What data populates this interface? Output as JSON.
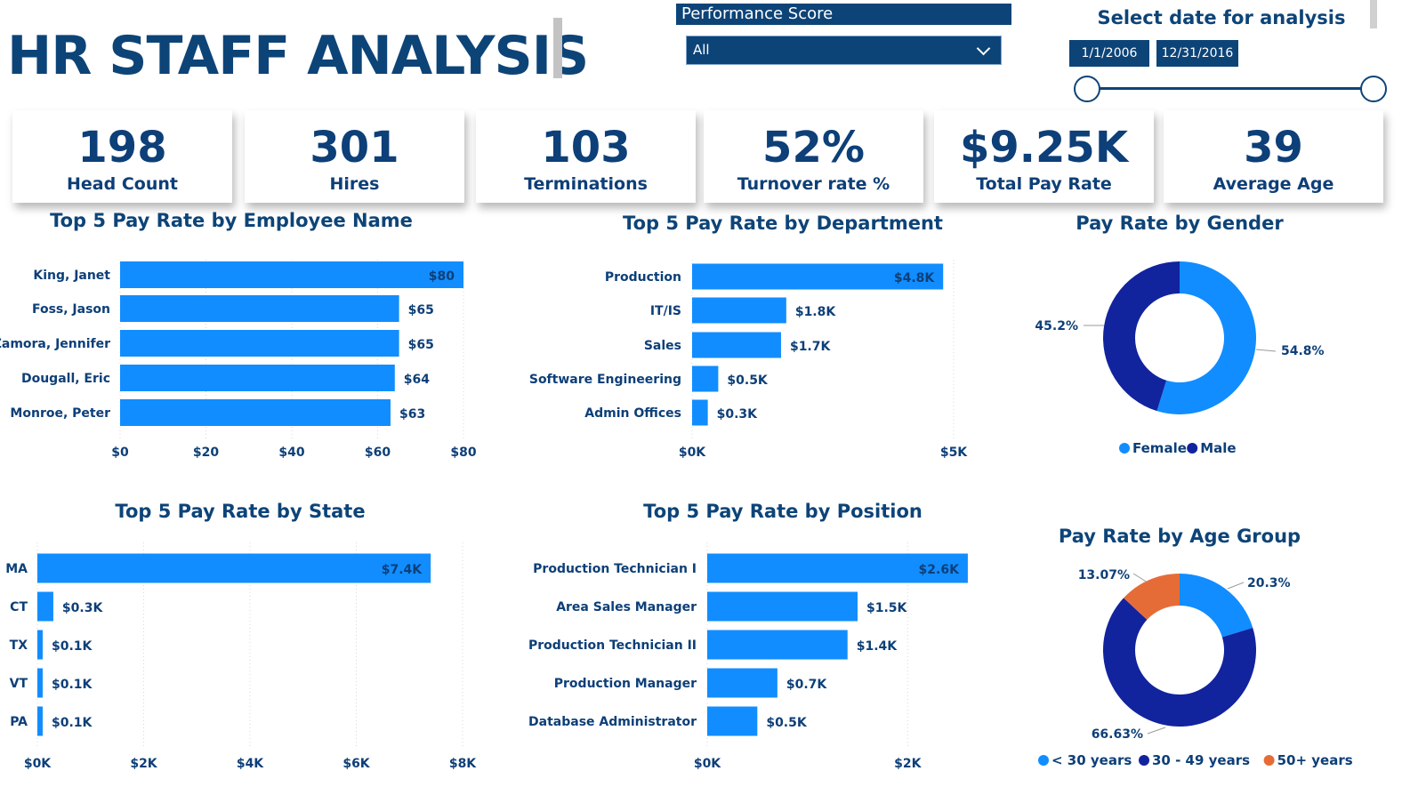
{
  "header": {
    "title": "HR STAFF ANALYSIS",
    "filter_label": "Performance Score",
    "filter_value": "All",
    "date_title": "Select date for analysis",
    "date_start": "1/1/2006",
    "date_end": "12/31/2016"
  },
  "kpis": [
    {
      "value": "198",
      "label": "Head Count"
    },
    {
      "value": "301",
      "label": "Hires"
    },
    {
      "value": "103",
      "label": "Terminations"
    },
    {
      "value": "52%",
      "label": "Turnover rate %"
    },
    {
      "value": "$9.25K",
      "label": "Total Pay Rate"
    },
    {
      "value": "39",
      "label": "Average Age"
    }
  ],
  "colors": {
    "bar": "#118dff",
    "dark": "#12239e",
    "orange": "#e66c37",
    "text": "#0d3f78"
  },
  "chart_data": [
    {
      "id": "employee",
      "type": "bar",
      "orientation": "horizontal",
      "title": "Top 5 Pay Rate by Employee Name",
      "categories": [
        "King, Janet",
        "Foss, Jason",
        "Zamora, Jennifer",
        "Dougall, Eric",
        "Monroe, Peter"
      ],
      "values": [
        80,
        65,
        65,
        64,
        63
      ],
      "value_labels": [
        "$80",
        "$65",
        "$65",
        "$64",
        "$63"
      ],
      "xlim": [
        0,
        80
      ],
      "xticks": [
        0,
        20,
        40,
        60,
        80
      ],
      "xtick_labels": [
        "$0",
        "$20",
        "$40",
        "$60",
        "$80"
      ]
    },
    {
      "id": "department",
      "type": "bar",
      "orientation": "horizontal",
      "title": "Top 5 Pay Rate by Department",
      "categories": [
        "Production",
        "IT/IS",
        "Sales",
        "Software Engineering",
        "Admin Offices"
      ],
      "values": [
        4.8,
        1.8,
        1.7,
        0.5,
        0.3
      ],
      "value_labels": [
        "$4.8K",
        "$1.8K",
        "$1.7K",
        "$0.5K",
        "$0.3K"
      ],
      "xlim": [
        0,
        5
      ],
      "xticks": [
        0,
        5
      ],
      "xtick_labels": [
        "$0K",
        "$5K"
      ]
    },
    {
      "id": "state",
      "type": "bar",
      "orientation": "horizontal",
      "title": "Top 5 Pay Rate by State",
      "categories": [
        "MA",
        "CT",
        "TX",
        "VT",
        "PA"
      ],
      "values": [
        7.4,
        0.3,
        0.1,
        0.1,
        0.1
      ],
      "value_labels": [
        "$7.4K",
        "$0.3K",
        "$0.1K",
        "$0.1K",
        "$0.1K"
      ],
      "xlim": [
        0,
        8
      ],
      "xticks": [
        0,
        2,
        4,
        6,
        8
      ],
      "xtick_labels": [
        "$0K",
        "$2K",
        "$4K",
        "$6K",
        "$8K"
      ]
    },
    {
      "id": "position",
      "type": "bar",
      "orientation": "horizontal",
      "title": "Top 5 Pay Rate by Position",
      "categories": [
        "Production Technician I",
        "Area Sales Manager",
        "Production Technician II",
        "Production Manager",
        "Database Administrator"
      ],
      "values": [
        2.6,
        1.5,
        1.4,
        0.7,
        0.5
      ],
      "value_labels": [
        "$2.6K",
        "$1.5K",
        "$1.4K",
        "$0.7K",
        "$0.5K"
      ],
      "xlim": [
        0,
        3
      ],
      "xticks": [
        0,
        2
      ],
      "xtick_labels": [
        "$0K",
        "$2K"
      ]
    },
    {
      "id": "gender",
      "type": "pie",
      "donut": true,
      "title": "Pay Rate by Gender",
      "labels": [
        "Female",
        "Male"
      ],
      "values": [
        54.8,
        45.2
      ],
      "value_labels": [
        "54.8%",
        "45.2%"
      ],
      "colors": [
        "#118dff",
        "#12239e"
      ],
      "legend": "bottom"
    },
    {
      "id": "age",
      "type": "pie",
      "donut": true,
      "title": "Pay Rate by Age Group",
      "labels": [
        "< 30 years",
        "30 - 49 years",
        "50+ years"
      ],
      "values": [
        20.3,
        66.63,
        13.07
      ],
      "value_labels": [
        "20.3%",
        "66.63%",
        "13.07%"
      ],
      "colors": [
        "#118dff",
        "#12239e",
        "#e66c37"
      ],
      "legend": "bottom"
    }
  ]
}
